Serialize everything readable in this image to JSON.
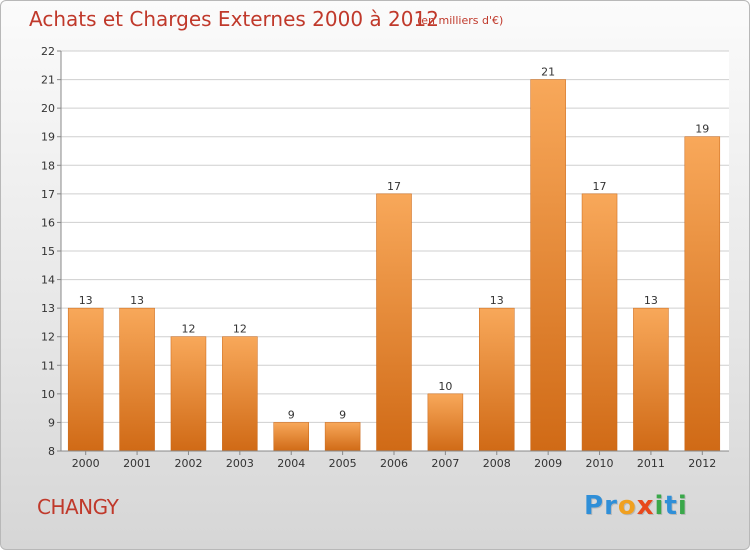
{
  "title": "Achats et Charges Externes 2000 à 2012",
  "subtitle": "(en milliers d'€)",
  "city": "CHANGY",
  "logo": {
    "text": "Proxiti",
    "letters": [
      {
        "ch": "P",
        "color": "#2f8fd8"
      },
      {
        "ch": "r",
        "color": "#2f8fd8"
      },
      {
        "ch": "o",
        "color": "#f0a020"
      },
      {
        "ch": "x",
        "color": "#e8481c"
      },
      {
        "ch": "i",
        "color": "#3aa84a"
      },
      {
        "ch": "t",
        "color": "#2f8fd8"
      },
      {
        "ch": "i",
        "color": "#3aa84a"
      }
    ]
  },
  "colors": {
    "bar_top": "#f8a85a",
    "bar_bottom": "#d06a16",
    "text_accent": "#c0392b",
    "grid": "#cfcfcf"
  },
  "chart_data": {
    "type": "bar",
    "title": "Achats et Charges Externes 2000 à 2012",
    "subtitle": "(en milliers d'€)",
    "categories": [
      "2000",
      "2001",
      "2002",
      "2003",
      "2004",
      "2005",
      "2006",
      "2007",
      "2008",
      "2009",
      "2010",
      "2011",
      "2012"
    ],
    "values": [
      13,
      13,
      12,
      12,
      9,
      9,
      17,
      10,
      13,
      21,
      17,
      13,
      19
    ],
    "ylim": [
      8,
      22
    ],
    "yticks": [
      8,
      9,
      10,
      11,
      12,
      13,
      14,
      15,
      16,
      17,
      18,
      19,
      20,
      21,
      22
    ],
    "grid": true,
    "data_labels": true
  }
}
